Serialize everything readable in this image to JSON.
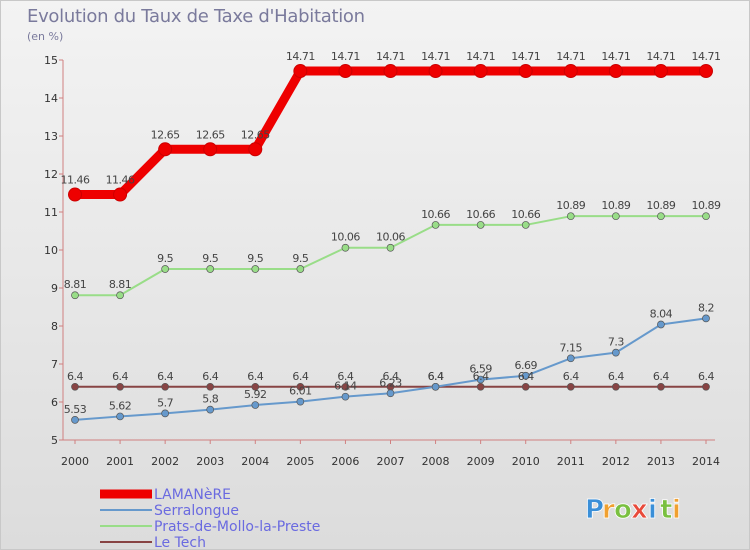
{
  "title": "Evolution du Taux de Taxe d'Habitation",
  "unit_label": "(en %)",
  "brand": {
    "letters": [
      "P",
      "r",
      "o",
      "x",
      "i",
      "t",
      "i"
    ],
    "colors": [
      "#3a8fd8",
      "#f0a030",
      "#7ac040",
      "#e84a3a",
      "#3a8fd8",
      "#7ac040",
      "#f0a030"
    ]
  },
  "chart_data": {
    "type": "line",
    "x": [
      2000,
      2001,
      2002,
      2003,
      2004,
      2005,
      2006,
      2007,
      2008,
      2009,
      2010,
      2011,
      2012,
      2013,
      2014
    ],
    "ylim": [
      5,
      15
    ],
    "yticks": [
      5,
      6,
      7,
      8,
      9,
      10,
      11,
      12,
      13,
      14,
      15
    ],
    "grid": false,
    "legend_position": "bottom-left",
    "series": [
      {
        "name": "LAMANèRE",
        "color": "#ee0000",
        "values": [
          11.46,
          11.46,
          12.65,
          12.65,
          12.65,
          14.71,
          14.71,
          14.71,
          14.71,
          14.71,
          14.71,
          14.71,
          14.71,
          14.71,
          14.71
        ],
        "labels": [
          "11.46",
          "11.46",
          "12.65",
          "12.65",
          "12.65",
          "14.71",
          "14.71",
          "14.71",
          "14.71",
          "14.71",
          "14.71",
          "14.71",
          "14.71",
          "14.71",
          "14.71"
        ]
      },
      {
        "name": "Serralongue",
        "color": "#6699cc",
        "values": [
          5.53,
          5.62,
          5.7,
          5.8,
          5.92,
          6.01,
          6.14,
          6.23,
          6.4,
          6.59,
          6.69,
          7.15,
          7.3,
          8.04,
          8.2
        ],
        "labels": [
          "5.53",
          "5.62",
          "5.7",
          "5.8",
          "5.92",
          "6.01",
          "6.14",
          "6.23",
          "6.4",
          "6.59",
          "6.69",
          "7.15",
          "7.3",
          "8.04",
          "8.2"
        ]
      },
      {
        "name": "Prats-de-Mollo-la-Preste",
        "color": "#99dd88",
        "values": [
          8.81,
          8.81,
          9.5,
          9.5,
          9.5,
          9.5,
          10.06,
          10.06,
          10.66,
          10.66,
          10.66,
          10.89,
          10.89,
          10.89,
          10.89
        ],
        "labels": [
          "8.81",
          "8.81",
          "9.5",
          "9.5",
          "9.5",
          "9.5",
          "10.06",
          "10.06",
          "10.66",
          "10.66",
          "10.66",
          "10.89",
          "10.89",
          "10.89",
          "10.89"
        ]
      },
      {
        "name": "Le Tech",
        "color": "#884444",
        "values": [
          6.4,
          6.4,
          6.4,
          6.4,
          6.4,
          6.4,
          6.4,
          6.4,
          6.4,
          6.4,
          6.4,
          6.4,
          6.4,
          6.4,
          6.4
        ],
        "labels": [
          "6.4",
          "6.4",
          "6.4",
          "6.4",
          "6.4",
          "6.4",
          "6.4",
          "6.4",
          "6.4",
          "6.4",
          "6.4",
          "6.4",
          "6.4",
          "6.4",
          "6.4"
        ]
      }
    ]
  }
}
